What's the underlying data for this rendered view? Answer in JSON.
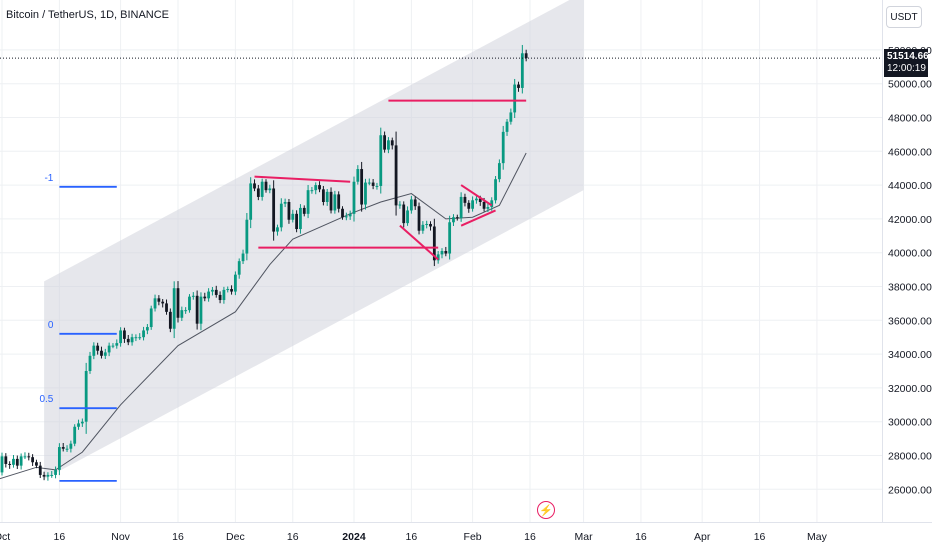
{
  "header": {
    "title": "Bitcoin / TetherUS, 1D, BINANCE"
  },
  "currency_button": "USDT",
  "price_tag": {
    "price": "51514.66",
    "countdown": "12:00:19"
  },
  "fib_labels": [
    "-1",
    "0",
    "0.5"
  ],
  "colors": {
    "up": "#089981",
    "down": "#131722",
    "pink": "#e91e63",
    "blue": "#2962ff",
    "channel": "#d1d4dc",
    "grid": "#eef0f3",
    "ma": "#505561"
  },
  "chart_data": {
    "type": "candlestick",
    "title": "Bitcoin / TetherUS, 1D, BINANCE",
    "ylim": [
      25000,
      53600
    ],
    "y_ticks": [
      26000,
      28000,
      30000,
      32000,
      34000,
      36000,
      38000,
      40000,
      42000,
      44000,
      46000,
      48000,
      50000,
      52000
    ],
    "y_tick_labels": [
      "26000.00",
      "28000.00",
      "30000.00",
      "32000.00",
      "34000.00",
      "36000.00",
      "38000.00",
      "40000.00",
      "42000.00",
      "44000.00",
      "46000.00",
      "48000.00",
      "50000.00",
      "52000.00"
    ],
    "x_ticks": [
      "2023-10-01",
      "2023-10-16",
      "2023-11-01",
      "2023-11-16",
      "2023-12-01",
      "2023-12-16",
      "2024-01-01",
      "2024-01-16",
      "2024-02-01",
      "2024-02-16",
      "2024-03-01",
      "2024-03-16",
      "2024-04-01",
      "2024-04-16",
      "2024-05-01"
    ],
    "x_tick_labels": [
      "Oct",
      "16",
      "Nov",
      "16",
      "Dec",
      "16",
      "2024",
      "16",
      "Feb",
      "16",
      "Mar",
      "16",
      "Apr",
      "16",
      "May"
    ],
    "x_range": [
      "2023-09-30",
      "2024-05-13"
    ],
    "last_price": 51514.66,
    "close_path": [
      [
        "2023-09-30",
        27000
      ],
      [
        "2023-10-01",
        27950
      ],
      [
        "2023-10-02",
        27500
      ],
      [
        "2023-10-03",
        27450
      ],
      [
        "2023-10-04",
        27800
      ],
      [
        "2023-10-05",
        27400
      ],
      [
        "2023-10-06",
        27950
      ],
      [
        "2023-10-07",
        27950
      ],
      [
        "2023-10-08",
        27900
      ],
      [
        "2023-10-09",
        27600
      ],
      [
        "2023-10-10",
        27400
      ],
      [
        "2023-10-11",
        26850
      ],
      [
        "2023-10-12",
        26750
      ],
      [
        "2023-10-13",
        26850
      ],
      [
        "2023-10-14",
        26850
      ],
      [
        "2023-10-15",
        27150
      ],
      [
        "2023-10-16",
        28500
      ],
      [
        "2023-10-17",
        28400
      ],
      [
        "2023-10-18",
        28400
      ],
      [
        "2023-10-19",
        28700
      ],
      [
        "2023-10-20",
        29700
      ],
      [
        "2023-10-21",
        29900
      ],
      [
        "2023-10-22",
        30000
      ],
      [
        "2023-10-23",
        33000
      ],
      [
        "2023-10-24",
        33900
      ],
      [
        "2023-10-25",
        34500
      ],
      [
        "2023-10-26",
        34200
      ],
      [
        "2023-10-27",
        33900
      ],
      [
        "2023-10-28",
        34100
      ],
      [
        "2023-10-29",
        34500
      ],
      [
        "2023-10-30",
        34500
      ],
      [
        "2023-10-31",
        34650
      ],
      [
        "2023-11-01",
        35400
      ],
      [
        "2023-11-02",
        34900
      ],
      [
        "2023-11-03",
        34700
      ],
      [
        "2023-11-04",
        35000
      ],
      [
        "2023-11-05",
        35000
      ],
      [
        "2023-11-06",
        35000
      ],
      [
        "2023-11-07",
        35400
      ],
      [
        "2023-11-08",
        35600
      ],
      [
        "2023-11-09",
        36700
      ],
      [
        "2023-11-10",
        37300
      ],
      [
        "2023-11-11",
        37100
      ],
      [
        "2023-11-12",
        37000
      ],
      [
        "2023-11-13",
        36500
      ],
      [
        "2023-11-14",
        35500
      ],
      [
        "2023-11-15",
        37900
      ],
      [
        "2023-11-16",
        36150
      ],
      [
        "2023-11-17",
        36600
      ],
      [
        "2023-11-18",
        36600
      ],
      [
        "2023-11-19",
        37400
      ],
      [
        "2023-11-20",
        37450
      ],
      [
        "2023-11-21",
        35800
      ],
      [
        "2023-11-22",
        37400
      ],
      [
        "2023-11-23",
        37300
      ],
      [
        "2023-11-24",
        37700
      ],
      [
        "2023-11-25",
        37800
      ],
      [
        "2023-11-26",
        37500
      ],
      [
        "2023-11-27",
        37200
      ],
      [
        "2023-11-28",
        37800
      ],
      [
        "2023-11-29",
        37850
      ],
      [
        "2023-11-30",
        37700
      ],
      [
        "2023-12-01",
        38700
      ],
      [
        "2023-12-02",
        39500
      ],
      [
        "2023-12-03",
        39950
      ],
      [
        "2023-12-04",
        41950
      ],
      [
        "2023-12-05",
        44100
      ],
      [
        "2023-12-06",
        43800
      ],
      [
        "2023-12-07",
        43300
      ],
      [
        "2023-12-08",
        44200
      ],
      [
        "2023-12-09",
        43700
      ],
      [
        "2023-12-10",
        43800
      ],
      [
        "2023-12-11",
        41250
      ],
      [
        "2023-12-12",
        41500
      ],
      [
        "2023-12-13",
        42900
      ],
      [
        "2023-12-14",
        43000
      ],
      [
        "2023-12-15",
        41950
      ],
      [
        "2023-12-16",
        42300
      ],
      [
        "2023-12-17",
        41400
      ],
      [
        "2023-12-18",
        42650
      ],
      [
        "2023-12-19",
        42300
      ],
      [
        "2023-12-20",
        43700
      ],
      [
        "2023-12-21",
        43700
      ],
      [
        "2023-12-22",
        44000
      ],
      [
        "2023-12-23",
        43750
      ],
      [
        "2023-12-24",
        43000
      ],
      [
        "2023-12-25",
        43600
      ],
      [
        "2023-12-26",
        42500
      ],
      [
        "2023-12-27",
        43450
      ],
      [
        "2023-12-28",
        42600
      ],
      [
        "2023-12-29",
        42100
      ],
      [
        "2023-12-30",
        42150
      ],
      [
        "2023-12-31",
        42300
      ],
      [
        "2024-01-01",
        44200
      ],
      [
        "2024-01-02",
        44950
      ],
      [
        "2024-01-03",
        42850
      ],
      [
        "2024-01-04",
        44150
      ],
      [
        "2024-01-05",
        44150
      ],
      [
        "2024-01-06",
        43950
      ],
      [
        "2024-01-07",
        43950
      ],
      [
        "2024-01-08",
        46950
      ],
      [
        "2024-01-09",
        46100
      ],
      [
        "2024-01-10",
        46650
      ],
      [
        "2024-01-11",
        46350
      ],
      [
        "2024-01-12",
        42800
      ],
      [
        "2024-01-13",
        42850
      ],
      [
        "2024-01-14",
        41750
      ],
      [
        "2024-01-15",
        42500
      ],
      [
        "2024-01-16",
        43150
      ],
      [
        "2024-01-17",
        42750
      ],
      [
        "2024-01-18",
        41300
      ],
      [
        "2024-01-19",
        41650
      ],
      [
        "2024-01-20",
        41700
      ],
      [
        "2024-01-21",
        41550
      ],
      [
        "2024-01-22",
        39550
      ],
      [
        "2024-01-23",
        39900
      ],
      [
        "2024-01-24",
        40100
      ],
      [
        "2024-01-25",
        39950
      ],
      [
        "2024-01-26",
        41800
      ],
      [
        "2024-01-27",
        42100
      ],
      [
        "2024-01-28",
        42050
      ],
      [
        "2024-01-29",
        43300
      ],
      [
        "2024-01-30",
        42950
      ],
      [
        "2024-01-31",
        42600
      ],
      [
        "2024-02-01",
        43100
      ],
      [
        "2024-02-02",
        43200
      ],
      [
        "2024-02-03",
        43000
      ],
      [
        "2024-02-04",
        42600
      ],
      [
        "2024-02-05",
        42700
      ],
      [
        "2024-02-06",
        43100
      ],
      [
        "2024-02-07",
        44350
      ],
      [
        "2024-02-08",
        45300
      ],
      [
        "2024-02-09",
        47150
      ],
      [
        "2024-02-10",
        47750
      ],
      [
        "2024-02-11",
        48300
      ],
      [
        "2024-02-12",
        49950
      ],
      [
        "2024-02-13",
        49750
      ],
      [
        "2024-02-14",
        51800
      ],
      [
        "2024-02-15",
        51514.66
      ]
    ],
    "moving_average": [
      [
        "2023-09-30",
        26600
      ],
      [
        "2023-10-10",
        27300
      ],
      [
        "2023-10-15",
        27150
      ],
      [
        "2023-10-22",
        28200
      ],
      [
        "2023-11-01",
        31000
      ],
      [
        "2023-11-16",
        34500
      ],
      [
        "2023-12-01",
        36500
      ],
      [
        "2023-12-10",
        39300
      ],
      [
        "2023-12-16",
        40800
      ],
      [
        "2023-12-31",
        42300
      ],
      [
        "2024-01-08",
        43000
      ],
      [
        "2024-01-16",
        43500
      ],
      [
        "2024-01-25",
        42000
      ],
      [
        "2024-02-01",
        42100
      ],
      [
        "2024-02-08",
        42800
      ],
      [
        "2024-02-15",
        45900
      ]
    ],
    "channel": {
      "lower": [
        [
          "2023-10-12",
          26600
        ],
        [
          "2024-03-01",
          43700
        ]
      ],
      "upper": [
        [
          "2023-10-12",
          38300
        ],
        [
          "2024-03-01",
          55400
        ]
      ]
    },
    "fib_levels": [
      {
        "label": "-1",
        "value": 43900,
        "x0": "2023-10-16",
        "x1": "2023-10-31"
      },
      {
        "label": "0",
        "value": 35200,
        "x0": "2023-10-16",
        "x1": "2023-10-31"
      },
      {
        "label": "0.5",
        "value": 30800,
        "x0": "2023-10-16",
        "x1": "2023-10-31"
      },
      {
        "value": 26500,
        "x0": "2023-10-16",
        "x1": "2023-10-31"
      }
    ],
    "pink_lines": [
      [
        [
          "2023-12-06",
          44500
        ],
        [
          "2023-12-31",
          44200
        ]
      ],
      [
        [
          "2023-12-07",
          40300
        ],
        [
          "2024-01-23",
          40300
        ]
      ],
      [
        [
          "2024-01-10",
          49000
        ],
        [
          "2024-02-15",
          49000
        ]
      ],
      [
        [
          "2024-01-13",
          41600
        ],
        [
          "2024-01-23",
          39600
        ]
      ],
      [
        [
          "2024-01-29",
          44000
        ],
        [
          "2024-02-06",
          42800
        ]
      ],
      [
        [
          "2024-01-29",
          41600
        ],
        [
          "2024-02-07",
          42500
        ]
      ]
    ]
  }
}
